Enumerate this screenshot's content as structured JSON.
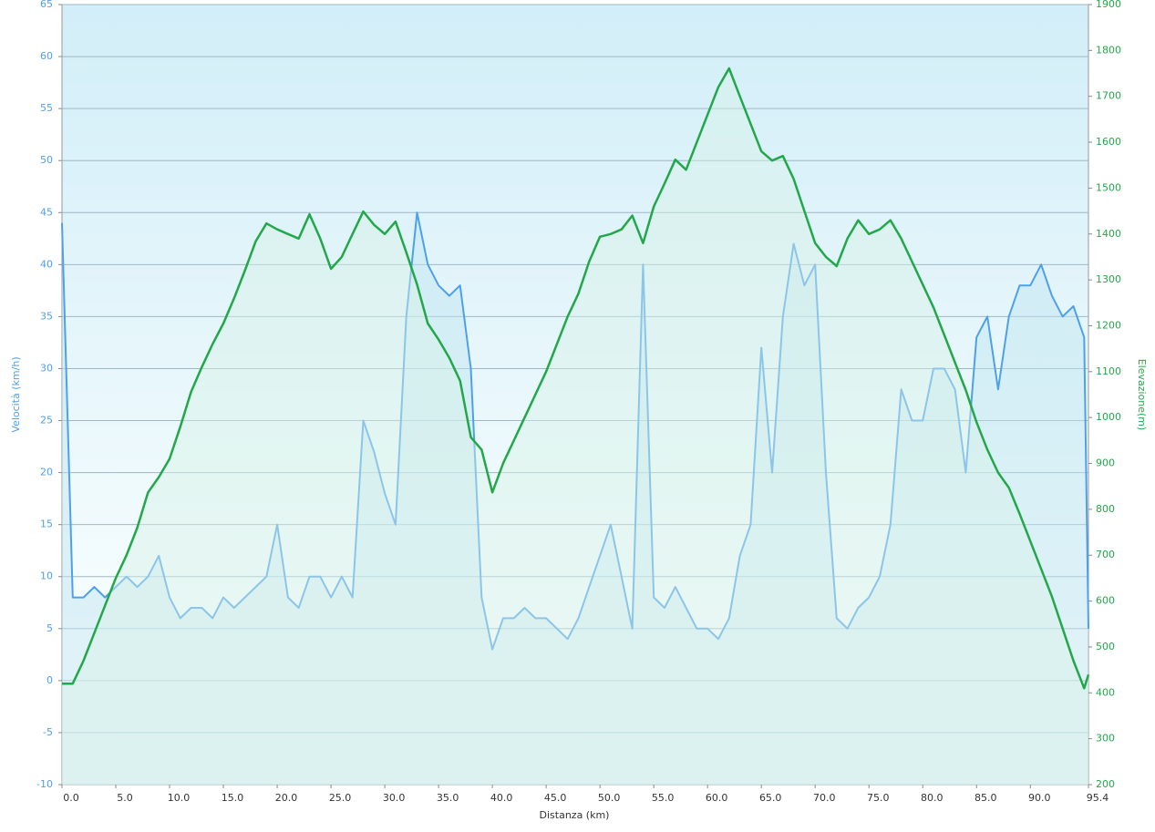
{
  "chart_data": {
    "type": "line",
    "xlabel": "Distanza  (km)",
    "ylabel": "Velocità (km/h)",
    "y2label": "Elevazione(m)",
    "x": [
      0,
      1,
      2,
      3,
      4,
      5,
      6,
      7,
      8,
      9,
      10,
      11,
      12,
      13,
      14,
      15,
      16,
      17,
      18,
      19,
      20,
      21,
      22,
      23,
      24,
      25,
      26,
      27,
      28,
      29,
      30,
      31,
      32,
      33,
      34,
      35,
      36,
      37,
      38,
      39,
      40,
      41,
      42,
      43,
      44,
      45,
      46,
      47,
      48,
      49,
      50,
      51,
      52,
      53,
      54,
      55,
      56,
      57,
      58,
      59,
      60,
      61,
      62,
      63,
      64,
      65,
      66,
      67,
      68,
      69,
      70,
      71,
      72,
      73,
      74,
      75,
      76,
      77,
      78,
      79,
      80,
      81,
      82,
      83,
      84,
      85,
      86,
      87,
      88,
      89,
      90,
      91,
      92,
      93,
      94,
      95,
      95.4
    ],
    "series": [
      {
        "name": "Velocità (km/h)",
        "color": "#4fa0ea",
        "fill": "#bfe4f0",
        "values": [
          44,
          8,
          8,
          9,
          8,
          9,
          10,
          9,
          10,
          12,
          8,
          6,
          7,
          7,
          6,
          8,
          7,
          8,
          9,
          10,
          15,
          8,
          7,
          10,
          10,
          8,
          10,
          8,
          25,
          22,
          18,
          15,
          35,
          45,
          40,
          38,
          37,
          38,
          30,
          8,
          3,
          6,
          6,
          7,
          6,
          6,
          5,
          4,
          6,
          9,
          12,
          15,
          10,
          5,
          40,
          8,
          7,
          9,
          7,
          5,
          5,
          4,
          6,
          12,
          15,
          32,
          20,
          35,
          42,
          38,
          40,
          20,
          6,
          5,
          7,
          8,
          10,
          15,
          28,
          25,
          25,
          30,
          30,
          28,
          20,
          33,
          35,
          28,
          35,
          38,
          38,
          40,
          37,
          35,
          36,
          33,
          5
        ]
      },
      {
        "name": "Elevazione(m)",
        "color": "#22a84a",
        "fill": "#d6f2e6",
        "axis": "y2",
        "values": [
          420,
          420,
          470,
          530,
          590,
          650,
          700,
          760,
          837,
          870,
          910,
          980,
          1056,
          1110,
          1160,
          1205,
          1260,
          1320,
          1384,
          1423,
          1410,
          1400,
          1390,
          1443,
          1390,
          1324,
          1350,
          1400,
          1449,
          1420,
          1400,
          1427,
          1360,
          1290,
          1205,
          1170,
          1130,
          1080,
          957,
          930,
          837,
          900,
          950,
          1000,
          1050,
          1100,
          1160,
          1220,
          1270,
          1340,
          1394,
          1400,
          1410,
          1440,
          1380,
          1460,
          1510,
          1562,
          1540,
          1600,
          1660,
          1720,
          1761,
          1700,
          1640,
          1580,
          1560,
          1570,
          1520,
          1450,
          1380,
          1350,
          1330,
          1390,
          1430,
          1400,
          1410,
          1430,
          1390,
          1340,
          1290,
          1240,
          1180,
          1120,
          1060,
          990,
          930,
          880,
          847,
          790,
          730,
          670,
          610,
          540,
          470,
          410,
          440
        ]
      }
    ],
    "xlim": [
      0,
      95.4
    ],
    "xticks": [
      {
        "value": 0,
        "label": "0.0"
      },
      {
        "value": 5,
        "label": "5.0"
      },
      {
        "value": 10,
        "label": "10.0"
      },
      {
        "value": 15,
        "label": "15.0"
      },
      {
        "value": 20,
        "label": "20.0"
      },
      {
        "value": 25,
        "label": "25.0"
      },
      {
        "value": 30,
        "label": "30.0"
      },
      {
        "value": 35,
        "label": "35.0"
      },
      {
        "value": 40,
        "label": "40.0"
      },
      {
        "value": 45,
        "label": "45.0"
      },
      {
        "value": 50,
        "label": "50.0"
      },
      {
        "value": 55,
        "label": "55.0"
      },
      {
        "value": 60,
        "label": "60.0"
      },
      {
        "value": 65,
        "label": "65.0"
      },
      {
        "value": 70,
        "label": "70.0"
      },
      {
        "value": 75,
        "label": "75.0"
      },
      {
        "value": 80,
        "label": "80.0"
      },
      {
        "value": 85,
        "label": "85.0"
      },
      {
        "value": 90,
        "label": "90.0"
      },
      95.4
    ],
    "ylim": [
      -10,
      65
    ],
    "yticks": [
      -10,
      -5,
      0,
      5,
      10,
      15,
      20,
      25,
      30,
      35,
      40,
      45,
      50,
      55,
      60,
      65
    ],
    "y2lim": [
      200,
      1900
    ],
    "y2ticks": [
      200,
      300,
      400,
      500,
      600,
      700,
      800,
      900,
      1000,
      1100,
      1200,
      1300,
      1400,
      1500,
      1600,
      1700,
      1800,
      1900
    ],
    "grid": true
  }
}
